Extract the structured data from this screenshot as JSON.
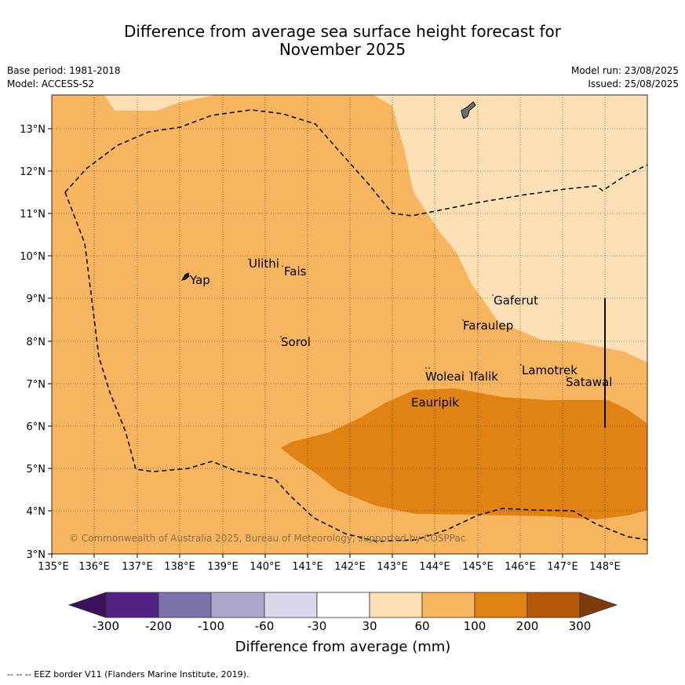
{
  "title_line1": "Difference from average sea surface height forecast for",
  "title_line2": "November 2025",
  "meta": {
    "base_period": "Base period: 1981-2018",
    "model": "Model: ACCESS-S2",
    "model_run": "Model run: 23/08/2025",
    "issued": "Issued: 25/08/2025"
  },
  "map": {
    "lat_labels": [
      "13°N",
      "12°N",
      "11°N",
      "10°N",
      "9°N",
      "8°N",
      "7°N",
      "6°N",
      "5°N",
      "4°N",
      "3°N"
    ],
    "lon_labels": [
      "135°E",
      "136°E",
      "137°E",
      "138°E",
      "139°E",
      "140°E",
      "141°E",
      "142°E",
      "143°E",
      "144°E",
      "145°E",
      "146°E",
      "147°E",
      "148°E"
    ],
    "places": [
      "Yap",
      "Ulithi",
      "Fais",
      "Sorol",
      "Gaferut",
      "Faraulep",
      "Woleai",
      "Ifalik",
      "Lamotrek",
      "Satawal",
      "Eauripik"
    ],
    "copyright": "© Commonwealth of Australia 2025, Bureau of Meteorology, supported by COSPPac"
  },
  "colorbar": {
    "ticks": [
      "-300",
      "-200",
      "-100",
      "-60",
      "-30",
      "30",
      "60",
      "100",
      "200",
      "300"
    ],
    "colors": [
      "#3b1259",
      "#512281",
      "#7f72ab",
      "#aea8d0",
      "#d9d9ec",
      "#ffffff",
      "#fde0b5",
      "#f8b55f",
      "#e08314",
      "#b35807",
      "#7e3b0c"
    ],
    "label": "Difference from average (mm)"
  },
  "footer": "--  --  -- EEZ border V11 (Flanders Marine Institute, 2019)."
}
